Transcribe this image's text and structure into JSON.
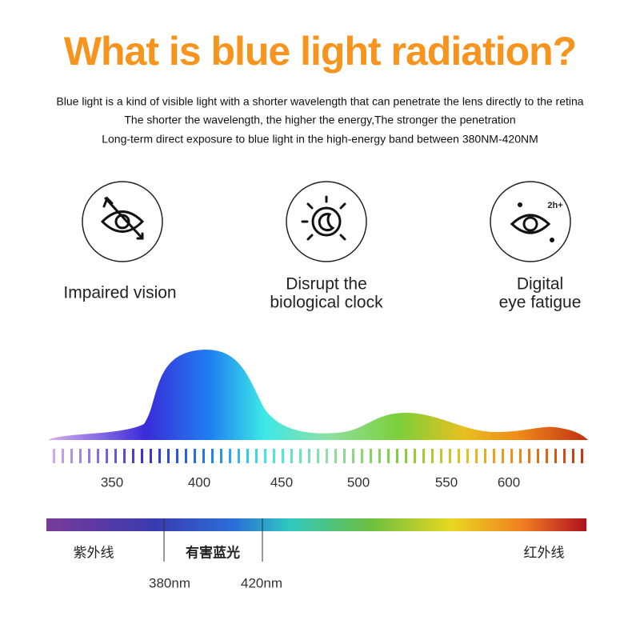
{
  "header": {
    "title": "What is  blue light radiation?",
    "lines": [
      "Blue light is a kind of visible light with a shorter wavelength that can penetrate the lens directly to the retina",
      "The shorter the wavelength, the higher the energy,The stronger the penetration",
      "Long-term direct exposure to blue light in the high-energy band between 380NM-420NM"
    ]
  },
  "effects": [
    {
      "label": [
        "Impaired vision"
      ]
    },
    {
      "label": [
        "Disrupt the",
        "biological clock"
      ]
    },
    {
      "label": [
        "Digital",
        "eye fatigue"
      ]
    }
  ],
  "icon_text": "2h+",
  "spectrum": {
    "axis_labels": [
      "350",
      "400",
      "450",
      "500",
      "550",
      "600"
    ]
  },
  "band": {
    "regions": [
      "紫外线",
      "有害蓝光",
      "红外线"
    ],
    "bounds": [
      "380nm",
      "420nm"
    ]
  }
}
